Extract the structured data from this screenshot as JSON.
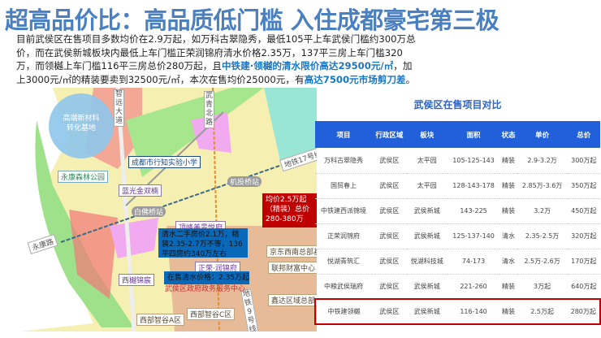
{
  "title": "超高品价比：高品质低门槛 入住成都豪宅第三极",
  "paragraph": {
    "p1": "目前武侯区在售项目多数均价在2.9万起，如万科古翠隐秀，最低105平上车武侯门槛约300万总价，而在武侯新城板块内最低上车门槛正荣润锦府清水价格2.35万，137平三房上车门槛320万，而领樾上车门槛116平三房总价280万起，且",
    "h1": "中铁建·领樾的清水限价高达29500元/㎡",
    "p2": "，加上3000元/㎡的精装要卖到32500元/㎡，本次在售均价25000元，有",
    "h2": "高达7500元市场剪刀差",
    "p3": "。"
  },
  "map": {
    "circle": "高端新材料转化基地",
    "roads": [
      "智远大道",
      "武青北路",
      "地铁17号线",
      "永康路",
      "地铁9号线"
    ],
    "stations": [
      "机投桥站",
      "白佛桥站"
    ],
    "pois": [
      "成都市行知实验小学",
      "永康森林公园",
      "蓝光金双楠",
      "顶峰美景悦府",
      "正荣·润锦府",
      "西樾锦宸",
      "京东西南总部基地",
      "联邦财富中心",
      "鑫达区域总部",
      "西部智谷C区",
      "西部智谷A区"
    ],
    "gov": "武侯区政府政务服务中心",
    "red_note": "均价2.5万起（精装）总价280-380万",
    "blue_note1": "清水二手房价2.1万，精装2.35-2.7万不等，136平四房约340万左右",
    "blue_note2": "在售清水价格：2.35万起"
  },
  "table": {
    "title": "武侯区在售项目对比",
    "headers": [
      "项目",
      "行政区域",
      "板块",
      "面积",
      "状态",
      "单价",
      "总价"
    ],
    "rows": [
      [
        "万科古翠隐秀",
        "武侯区",
        "太平园",
        "105-125-143",
        "精装",
        "2.9-3.2万",
        "300万起"
      ],
      [
        "国贸春上",
        "武侯区",
        "太平园",
        "128-143-178",
        "精装",
        "2.85万-3.6万",
        "350万起"
      ],
      [
        "中铁建西派锦境",
        "武侯区",
        "武侯新城",
        "143-225",
        "精装",
        "3.2万",
        "450万起"
      ],
      [
        "正荣润锦府",
        "武侯区",
        "武侯新城",
        "125-137-140",
        "清水",
        "2.35-2.5万",
        "320万起"
      ],
      [
        "悦湖青筑汇",
        "武侯区",
        "悦湖科技城",
        "74-173",
        "清水",
        "2.5万-2.6万",
        "170万起"
      ],
      [
        "中粮武侯瑞府",
        "武侯区",
        "武侯新城",
        "221-260",
        "精装",
        "3万起",
        "640万起"
      ],
      [
        "中铁建领樾",
        "武侯区",
        "武侯新城",
        "116-140",
        "精装",
        "2.5万起",
        "280万起"
      ]
    ],
    "highlight_row": 6,
    "highlight_color": "#c00000",
    "header_color": "#2160d8"
  }
}
